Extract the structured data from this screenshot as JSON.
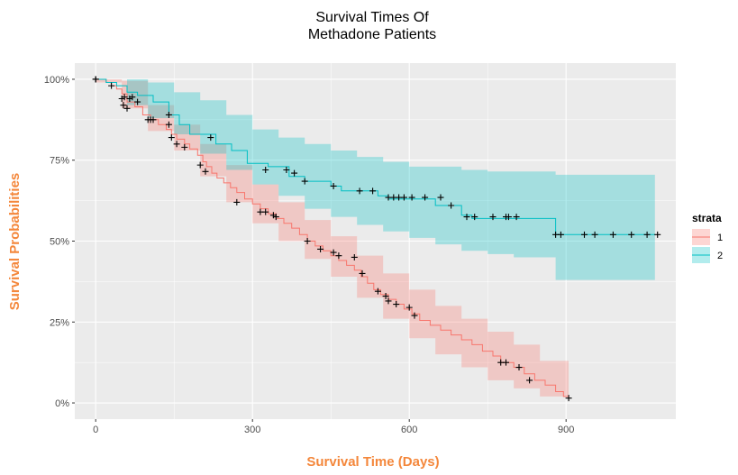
{
  "chart_data": {
    "type": "line",
    "title_lines": [
      "Survival Times Of",
      "Methadone Patients"
    ],
    "xlabel": "Survival Time (Days)",
    "ylabel": "Survival Probabilities",
    "axis_title_color": "#F4873B",
    "panel_background": "#EBEBEB",
    "xlim": [
      -40,
      1110
    ],
    "ylim": [
      -0.05,
      1.05
    ],
    "x_ticks": [
      {
        "value": 0,
        "label": "0"
      },
      {
        "value": 300,
        "label": "300"
      },
      {
        "value": 600,
        "label": "600"
      },
      {
        "value": 900,
        "label": "900"
      }
    ],
    "y_ticks": [
      {
        "value": 0,
        "label": "0%"
      },
      {
        "value": 0.25,
        "label": "25%"
      },
      {
        "value": 0.5,
        "label": "50%"
      },
      {
        "value": 0.75,
        "label": "75%"
      },
      {
        "value": 1,
        "label": "100%"
      }
    ],
    "grid": true,
    "legend": {
      "title": "strata",
      "position": "right"
    },
    "series": [
      {
        "name": "1",
        "color": "#F8766D",
        "fill": "#F8766D",
        "steps": [
          [
            0,
            1.0
          ],
          [
            20,
            0.99
          ],
          [
            30,
            0.98
          ],
          [
            40,
            0.97
          ],
          [
            50,
            0.955
          ],
          [
            60,
            0.93
          ],
          [
            75,
            0.915
          ],
          [
            90,
            0.89
          ],
          [
            105,
            0.875
          ],
          [
            120,
            0.86
          ],
          [
            135,
            0.845
          ],
          [
            145,
            0.83
          ],
          [
            155,
            0.815
          ],
          [
            170,
            0.8
          ],
          [
            180,
            0.785
          ],
          [
            195,
            0.765
          ],
          [
            205,
            0.745
          ],
          [
            212,
            0.73
          ],
          [
            222,
            0.71
          ],
          [
            232,
            0.695
          ],
          [
            245,
            0.68
          ],
          [
            258,
            0.665
          ],
          [
            270,
            0.65
          ],
          [
            285,
            0.63
          ],
          [
            300,
            0.615
          ],
          [
            315,
            0.6
          ],
          [
            330,
            0.585
          ],
          [
            345,
            0.57
          ],
          [
            360,
            0.555
          ],
          [
            375,
            0.54
          ],
          [
            390,
            0.52
          ],
          [
            405,
            0.5
          ],
          [
            420,
            0.485
          ],
          [
            435,
            0.47
          ],
          [
            450,
            0.455
          ],
          [
            465,
            0.44
          ],
          [
            480,
            0.425
          ],
          [
            495,
            0.41
          ],
          [
            508,
            0.39
          ],
          [
            520,
            0.37
          ],
          [
            532,
            0.35
          ],
          [
            545,
            0.335
          ],
          [
            560,
            0.32
          ],
          [
            575,
            0.305
          ],
          [
            590,
            0.29
          ],
          [
            605,
            0.275
          ],
          [
            620,
            0.255
          ],
          [
            640,
            0.24
          ],
          [
            660,
            0.225
          ],
          [
            680,
            0.21
          ],
          [
            700,
            0.195
          ],
          [
            720,
            0.18
          ],
          [
            740,
            0.16
          ],
          [
            760,
            0.145
          ],
          [
            775,
            0.125
          ],
          [
            800,
            0.11
          ],
          [
            820,
            0.09
          ],
          [
            840,
            0.07
          ],
          [
            860,
            0.055
          ],
          [
            880,
            0.035
          ],
          [
            895,
            0.02
          ],
          [
            905,
            0.015
          ]
        ],
        "ci_lower": [
          [
            0,
            0.99
          ],
          [
            50,
            0.91
          ],
          [
            100,
            0.84
          ],
          [
            150,
            0.78
          ],
          [
            200,
            0.7
          ],
          [
            250,
            0.62
          ],
          [
            300,
            0.555
          ],
          [
            350,
            0.5
          ],
          [
            400,
            0.445
          ],
          [
            450,
            0.39
          ],
          [
            500,
            0.325
          ],
          [
            550,
            0.26
          ],
          [
            600,
            0.2
          ],
          [
            650,
            0.15
          ],
          [
            700,
            0.11
          ],
          [
            750,
            0.07
          ],
          [
            800,
            0.045
          ],
          [
            850,
            0.02
          ],
          [
            905,
            0.005
          ]
        ],
        "ci_upper": [
          [
            0,
            1.0
          ],
          [
            50,
            0.995
          ],
          [
            100,
            0.92
          ],
          [
            150,
            0.86
          ],
          [
            200,
            0.8
          ],
          [
            250,
            0.735
          ],
          [
            300,
            0.675
          ],
          [
            350,
            0.62
          ],
          [
            400,
            0.565
          ],
          [
            450,
            0.515
          ],
          [
            500,
            0.455
          ],
          [
            550,
            0.4
          ],
          [
            600,
            0.35
          ],
          [
            650,
            0.3
          ],
          [
            700,
            0.26
          ],
          [
            750,
            0.22
          ],
          [
            800,
            0.18
          ],
          [
            850,
            0.13
          ],
          [
            905,
            0.13
          ]
        ],
        "censored": [
          [
            0,
            1.0
          ],
          [
            30,
            0.98
          ],
          [
            50,
            0.94
          ],
          [
            53,
            0.92
          ],
          [
            60,
            0.91
          ],
          [
            65,
            0.94
          ],
          [
            80,
            0.93
          ],
          [
            100,
            0.875
          ],
          [
            110,
            0.875
          ],
          [
            140,
            0.86
          ],
          [
            145,
            0.82
          ],
          [
            155,
            0.8
          ],
          [
            170,
            0.79
          ],
          [
            200,
            0.735
          ],
          [
            210,
            0.715
          ],
          [
            270,
            0.62
          ],
          [
            315,
            0.59
          ],
          [
            325,
            0.59
          ],
          [
            340,
            0.58
          ],
          [
            345,
            0.575
          ],
          [
            405,
            0.5
          ],
          [
            430,
            0.475
          ],
          [
            455,
            0.465
          ],
          [
            465,
            0.455
          ],
          [
            495,
            0.45
          ],
          [
            510,
            0.4
          ],
          [
            540,
            0.345
          ],
          [
            555,
            0.33
          ],
          [
            560,
            0.315
          ],
          [
            575,
            0.305
          ],
          [
            600,
            0.295
          ],
          [
            610,
            0.27
          ],
          [
            775,
            0.125
          ],
          [
            785,
            0.125
          ],
          [
            810,
            0.11
          ],
          [
            830,
            0.07
          ],
          [
            905,
            0.015
          ]
        ]
      },
      {
        "name": "2",
        "color": "#00BFC4",
        "fill": "#00BFC4",
        "steps": [
          [
            0,
            1.0
          ],
          [
            20,
            0.99
          ],
          [
            40,
            0.98
          ],
          [
            60,
            0.96
          ],
          [
            80,
            0.95
          ],
          [
            110,
            0.93
          ],
          [
            140,
            0.89
          ],
          [
            160,
            0.86
          ],
          [
            180,
            0.83
          ],
          [
            210,
            0.83
          ],
          [
            230,
            0.8
          ],
          [
            260,
            0.78
          ],
          [
            290,
            0.74
          ],
          [
            330,
            0.73
          ],
          [
            370,
            0.7
          ],
          [
            400,
            0.685
          ],
          [
            450,
            0.67
          ],
          [
            470,
            0.655
          ],
          [
            540,
            0.64
          ],
          [
            560,
            0.63
          ],
          [
            650,
            0.61
          ],
          [
            700,
            0.58
          ],
          [
            720,
            0.57
          ],
          [
            880,
            0.52
          ],
          [
            1070,
            0.52
          ]
        ],
        "ci_lower": [
          [
            0,
            1.0
          ],
          [
            60,
            0.92
          ],
          [
            100,
            0.88
          ],
          [
            150,
            0.83
          ],
          [
            200,
            0.77
          ],
          [
            250,
            0.72
          ],
          [
            300,
            0.675
          ],
          [
            350,
            0.64
          ],
          [
            400,
            0.6
          ],
          [
            450,
            0.575
          ],
          [
            500,
            0.55
          ],
          [
            550,
            0.53
          ],
          [
            600,
            0.51
          ],
          [
            650,
            0.49
          ],
          [
            700,
            0.47
          ],
          [
            750,
            0.46
          ],
          [
            800,
            0.45
          ],
          [
            880,
            0.38
          ],
          [
            1070,
            0.38
          ]
        ],
        "ci_upper": [
          [
            0,
            1.0
          ],
          [
            60,
            1.0
          ],
          [
            100,
            0.99
          ],
          [
            150,
            0.96
          ],
          [
            200,
            0.935
          ],
          [
            250,
            0.89
          ],
          [
            300,
            0.845
          ],
          [
            350,
            0.82
          ],
          [
            400,
            0.8
          ],
          [
            450,
            0.78
          ],
          [
            500,
            0.76
          ],
          [
            550,
            0.745
          ],
          [
            600,
            0.73
          ],
          [
            700,
            0.72
          ],
          [
            750,
            0.715
          ],
          [
            800,
            0.715
          ],
          [
            880,
            0.705
          ],
          [
            1070,
            0.705
          ]
        ],
        "censored": [
          [
            0,
            1.0
          ],
          [
            55,
            0.945
          ],
          [
            70,
            0.945
          ],
          [
            105,
            0.875
          ],
          [
            140,
            0.89
          ],
          [
            220,
            0.82
          ],
          [
            325,
            0.72
          ],
          [
            365,
            0.72
          ],
          [
            380,
            0.71
          ],
          [
            400,
            0.685
          ],
          [
            455,
            0.67
          ],
          [
            505,
            0.655
          ],
          [
            530,
            0.655
          ],
          [
            560,
            0.635
          ],
          [
            570,
            0.635
          ],
          [
            580,
            0.635
          ],
          [
            590,
            0.635
          ],
          [
            605,
            0.635
          ],
          [
            630,
            0.635
          ],
          [
            660,
            0.635
          ],
          [
            680,
            0.61
          ],
          [
            710,
            0.575
          ],
          [
            725,
            0.575
          ],
          [
            760,
            0.575
          ],
          [
            785,
            0.575
          ],
          [
            790,
            0.575
          ],
          [
            805,
            0.575
          ],
          [
            880,
            0.52
          ],
          [
            890,
            0.52
          ],
          [
            935,
            0.52
          ],
          [
            955,
            0.52
          ],
          [
            990,
            0.52
          ],
          [
            1025,
            0.52
          ],
          [
            1055,
            0.52
          ],
          [
            1075,
            0.52
          ]
        ]
      }
    ]
  }
}
